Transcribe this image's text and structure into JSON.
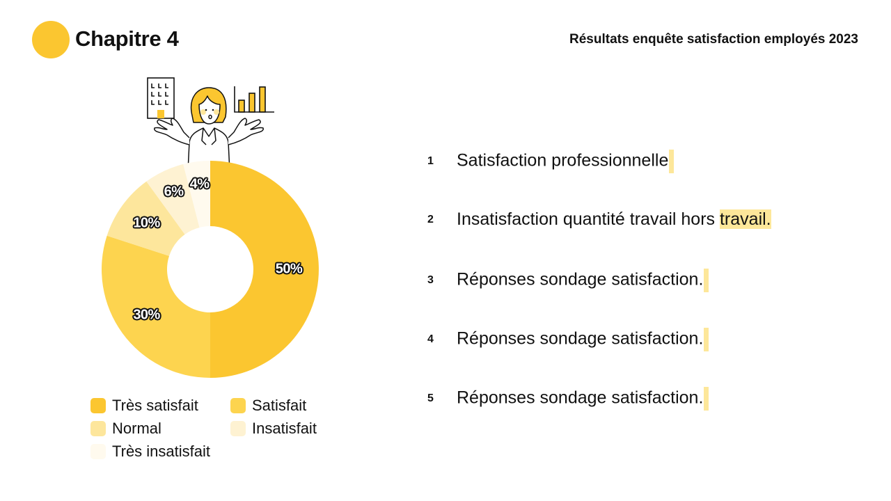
{
  "header": {
    "chapter_title": "Chapitre 4",
    "report_title": "Résultats enquête satisfaction employés 2023",
    "accent_color": "#fbc630"
  },
  "illustration": {
    "icons": [
      "building-icon",
      "person-shrugging-icon",
      "bar-chart-icon"
    ]
  },
  "chart_data": {
    "type": "pie",
    "subtype": "donut",
    "title": "",
    "categories": [
      "Très satisfait",
      "Satisfait",
      "Normal",
      "Insatisfait",
      "Très insatisfait"
    ],
    "values": [
      50,
      30,
      10,
      6,
      4
    ],
    "labels": [
      "50%",
      "30%",
      "10%",
      "6%",
      "4%"
    ],
    "colors": [
      "#fbc630",
      "#fdd44f",
      "#fde69c",
      "#fef2d2",
      "#fffaee"
    ],
    "legend_position": "bottom",
    "start_angle": "12 o'clock, clockwise"
  },
  "legend": {
    "items": [
      {
        "label": "Très satisfait",
        "color": "#fbc630"
      },
      {
        "label": "Satisfait",
        "color": "#fdd44f"
      },
      {
        "label": "Normal",
        "color": "#fde69c"
      },
      {
        "label": "Insatisfait",
        "color": "#fef2d2"
      },
      {
        "label": "Très insatisfait",
        "color": "#fffaee"
      }
    ]
  },
  "list": {
    "items": [
      {
        "num": "1",
        "text": "Satisfaction professionnelle",
        "highlight": ""
      },
      {
        "num": "2",
        "text": "Insatisfaction quantité travail hors ",
        "highlight": "travail."
      },
      {
        "num": "3",
        "text": "Réponses sondage satisfaction.",
        "highlight": ""
      },
      {
        "num": "4",
        "text": "Réponses sondage satisfaction.",
        "highlight": ""
      },
      {
        "num": "5",
        "text": "Réponses sondage satisfaction.",
        "highlight": ""
      }
    ],
    "highlight_color": "#fde79a"
  }
}
